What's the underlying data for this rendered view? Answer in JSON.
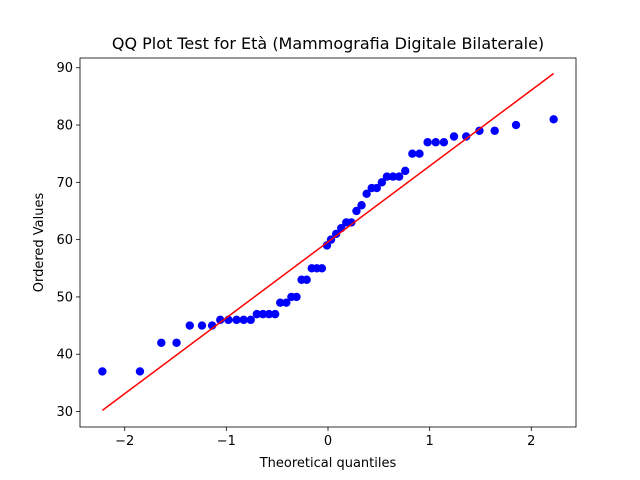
{
  "chart_data": {
    "type": "scatter",
    "title": "QQ Plot Test for Età (Mammografia Digitale Bilaterale)",
    "xlabel": "Theoretical quantiles",
    "ylabel": "Ordered Values",
    "xlim": [
      -2.44,
      2.44
    ],
    "ylim": [
      27.3,
      91.7
    ],
    "xticks": [
      -2,
      -1,
      0,
      1,
      2
    ],
    "xtick_labels": [
      "−2",
      "−1",
      "0",
      "1",
      "2"
    ],
    "yticks": [
      30,
      40,
      50,
      60,
      70,
      80,
      90
    ],
    "ytick_labels": [
      "30",
      "40",
      "50",
      "60",
      "70",
      "80",
      "90"
    ],
    "grid": false,
    "point_color": "#0000ff",
    "line_color": "#ff0000",
    "points": [
      {
        "x": -2.22,
        "y": 37
      },
      {
        "x": -1.85,
        "y": 37
      },
      {
        "x": -1.64,
        "y": 42
      },
      {
        "x": -1.49,
        "y": 42
      },
      {
        "x": -1.36,
        "y": 45
      },
      {
        "x": -1.24,
        "y": 45
      },
      {
        "x": -1.14,
        "y": 45
      },
      {
        "x": -1.06,
        "y": 46
      },
      {
        "x": -0.98,
        "y": 46
      },
      {
        "x": -0.9,
        "y": 46
      },
      {
        "x": -0.83,
        "y": 46
      },
      {
        "x": -0.76,
        "y": 46
      },
      {
        "x": -0.7,
        "y": 47
      },
      {
        "x": -0.64,
        "y": 47
      },
      {
        "x": -0.58,
        "y": 47
      },
      {
        "x": -0.52,
        "y": 47
      },
      {
        "x": -0.47,
        "y": 49
      },
      {
        "x": -0.41,
        "y": 49
      },
      {
        "x": -0.36,
        "y": 50
      },
      {
        "x": -0.31,
        "y": 50
      },
      {
        "x": -0.26,
        "y": 53
      },
      {
        "x": -0.21,
        "y": 53
      },
      {
        "x": -0.16,
        "y": 55
      },
      {
        "x": -0.11,
        "y": 55
      },
      {
        "x": -0.06,
        "y": 55
      },
      {
        "x": -0.01,
        "y": 59
      },
      {
        "x": 0.03,
        "y": 60
      },
      {
        "x": 0.08,
        "y": 61
      },
      {
        "x": 0.13,
        "y": 62
      },
      {
        "x": 0.18,
        "y": 63
      },
      {
        "x": 0.23,
        "y": 63
      },
      {
        "x": 0.28,
        "y": 65
      },
      {
        "x": 0.33,
        "y": 66
      },
      {
        "x": 0.38,
        "y": 68
      },
      {
        "x": 0.43,
        "y": 69
      },
      {
        "x": 0.48,
        "y": 69
      },
      {
        "x": 0.53,
        "y": 70
      },
      {
        "x": 0.58,
        "y": 71
      },
      {
        "x": 0.64,
        "y": 71
      },
      {
        "x": 0.7,
        "y": 71
      },
      {
        "x": 0.76,
        "y": 72
      },
      {
        "x": 0.83,
        "y": 75
      },
      {
        "x": 0.9,
        "y": 75
      },
      {
        "x": 0.98,
        "y": 77
      },
      {
        "x": 1.06,
        "y": 77
      },
      {
        "x": 1.14,
        "y": 77
      },
      {
        "x": 1.24,
        "y": 78
      },
      {
        "x": 1.36,
        "y": 78
      },
      {
        "x": 1.49,
        "y": 79
      },
      {
        "x": 1.64,
        "y": 79
      },
      {
        "x": 1.85,
        "y": 80
      },
      {
        "x": 2.22,
        "y": 81
      }
    ],
    "fit_line": {
      "x": [
        -2.22,
        2.22
      ],
      "y": [
        30.2,
        89.0
      ]
    }
  }
}
